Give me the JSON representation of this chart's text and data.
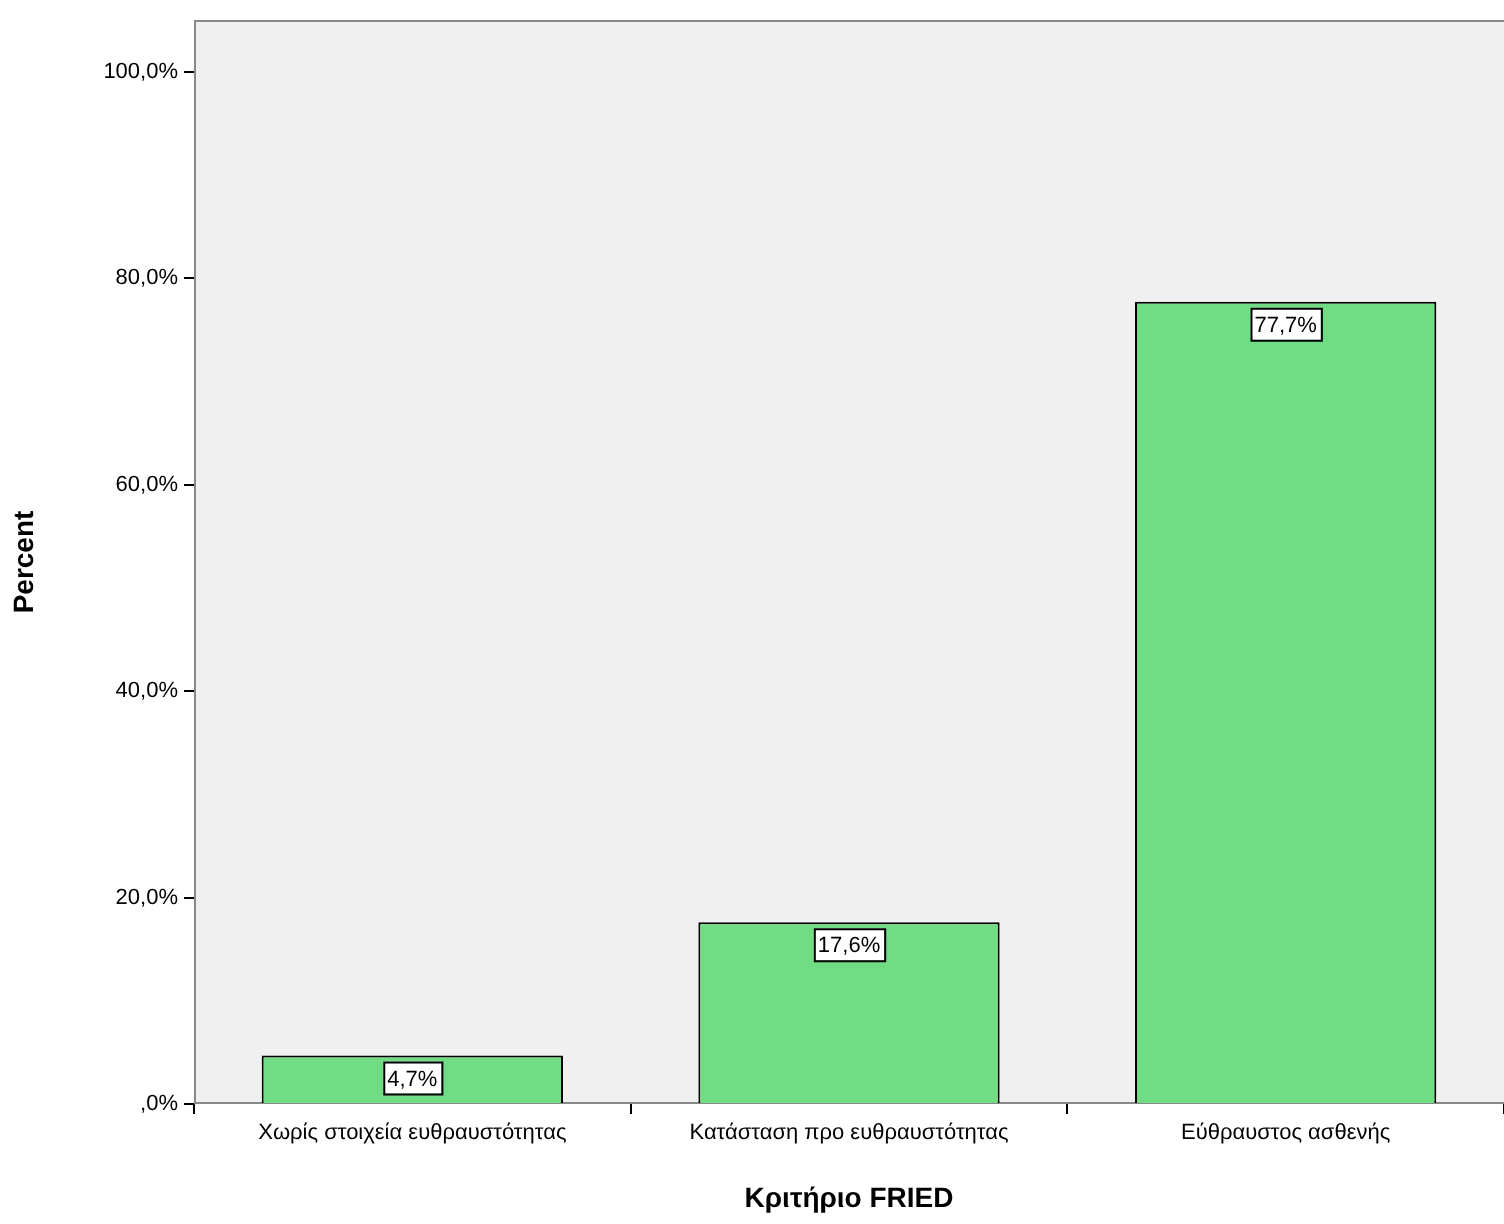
{
  "chart_data": {
    "type": "bar",
    "xlabel": "Κριτήριο FRIED",
    "ylabel": "Percent",
    "categories": [
      "Χωρίς στοιχεία ευθραυστότητας",
      "Κατάσταση προ ευθραυστότητας",
      "Εύθραυστος ασθενής"
    ],
    "values": [
      4.7,
      17.6,
      77.7
    ],
    "value_labels": [
      "4,7%",
      "17,6%",
      "77,7%"
    ],
    "color": "#70dc84",
    "ylim": [
      0,
      105
    ],
    "yticks": [
      {
        "value": 0,
        "label": ",0%"
      },
      {
        "value": 20,
        "label": "20,0%"
      },
      {
        "value": 40,
        "label": "40,0%"
      },
      {
        "value": 60,
        "label": "60,0%"
      },
      {
        "value": 80,
        "label": "80,0%"
      },
      {
        "value": 100,
        "label": "100,0%"
      }
    ],
    "grid": false,
    "legend": false
  }
}
